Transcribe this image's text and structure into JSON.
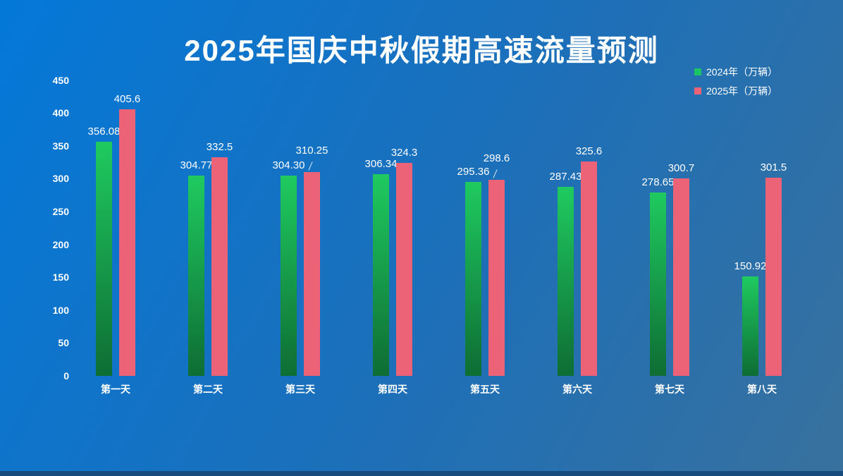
{
  "title": "2025年国庆中秋假期高速流量预测",
  "legend": [
    {
      "label": "2024年（万辆）",
      "color": "#1dc463",
      "swatch_icon": "green-square-icon"
    },
    {
      "label": "2025年（万辆）",
      "color": "#ec6377",
      "swatch_icon": "pink-square-icon"
    }
  ],
  "colors": {
    "bg_start": "#0478d8",
    "bg_mid": "#1d6fb8",
    "bg_end": "#38719e",
    "bottom_strip": "#174a7d",
    "text": "#ffffff",
    "green_top": "#1fca60",
    "green_bottom": "#0e6d34",
    "pink": "#ec6377"
  },
  "chart_data": {
    "type": "bar",
    "title": "2025年国庆中秋假期高速流量预测",
    "categories": [
      "第一天",
      "第二天",
      "第三天",
      "第四天",
      "第五天",
      "第六天",
      "第七天",
      "第八天"
    ],
    "series": [
      {
        "name": "2024年（万辆）",
        "color_top": "#1fca60",
        "color_bottom": "#0e6d34",
        "values": [
          356.08,
          304.77,
          304.3,
          306.34,
          295.36,
          287.43,
          278.65,
          150.92
        ],
        "value_labels": [
          "356.08",
          "304.77",
          "304.30",
          "306.34",
          "295.36",
          "287.43",
          "278.65",
          "150.92"
        ],
        "callout_indexes": []
      },
      {
        "name": "2025年（万辆）",
        "color": "#ec6377",
        "values": [
          405.6,
          332.5,
          310.25,
          324.3,
          298.6,
          325.6,
          300.7,
          301.5
        ],
        "value_labels": [
          "405.6",
          "332.5",
          "310.25",
          "324.3",
          "298.6",
          "325.6",
          "300.7",
          "301.5"
        ],
        "callout_indexes": [
          2,
          4
        ]
      }
    ],
    "xlabel": "",
    "ylabel": "",
    "ylim": [
      0,
      450
    ],
    "y_ticks": [
      0,
      50,
      100,
      150,
      200,
      250,
      300,
      350,
      400,
      450
    ],
    "grid": false,
    "legend_position": "top-right"
  }
}
